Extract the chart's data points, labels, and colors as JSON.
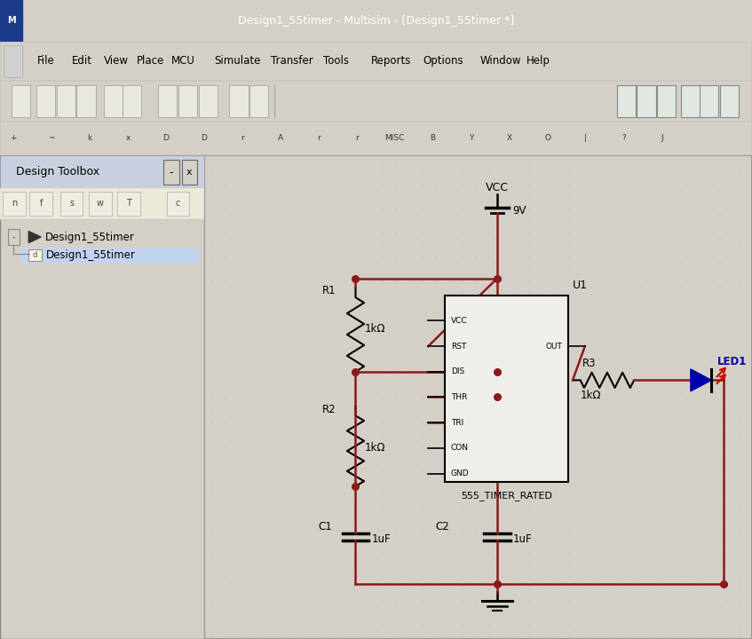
{
  "title_bar": "Design1_55timer - Multisim - [Design1_55timer *]",
  "menu_items": [
    "File",
    "Edit",
    "View",
    "Place",
    "MCU",
    "Simulate",
    "Transfer",
    "Tools",
    "Reports",
    "Options",
    "Window",
    "Help"
  ],
  "panel_title": "Design Toolbox",
  "tree_item1": "Design1_55timer",
  "tree_item2": "Design1_55timer",
  "bg_color": "#d4d0c8",
  "title_bar_color": "#0a246a",
  "title_bar_text_color": "#ffffff",
  "menu_bar_color": "#ece9d8",
  "toolbar_color": "#ece9d8",
  "panel_bg": "#ffffff",
  "schematic_bg": "#f5f5f5",
  "dot_color": "#b0b0b0",
  "wire_color": "#8b1a1a",
  "component_color": "#000000",
  "vcc_label": "VCC",
  "voltage_label": "9V",
  "ic_label": "U1",
  "ic_name": "555_TIMER_RATED",
  "r1_label": "R1",
  "r1_val": "1kΩ",
  "r2_label": "R2",
  "r2_val": "1kΩ",
  "r3_label": "R3",
  "r3_val": "1kΩ",
  "c1_label": "C1",
  "c1_val": "1uF",
  "c2_label": "C2",
  "c2_val": "1uF",
  "led_label": "LED1",
  "led_color": "#0000aa",
  "led_arrow_color": "#cc0000",
  "ic_pins_left": [
    "VCC",
    "RST",
    "DIS",
    "THR",
    "TRI",
    "CON",
    "GND"
  ],
  "ic_pin_out": "OUT"
}
